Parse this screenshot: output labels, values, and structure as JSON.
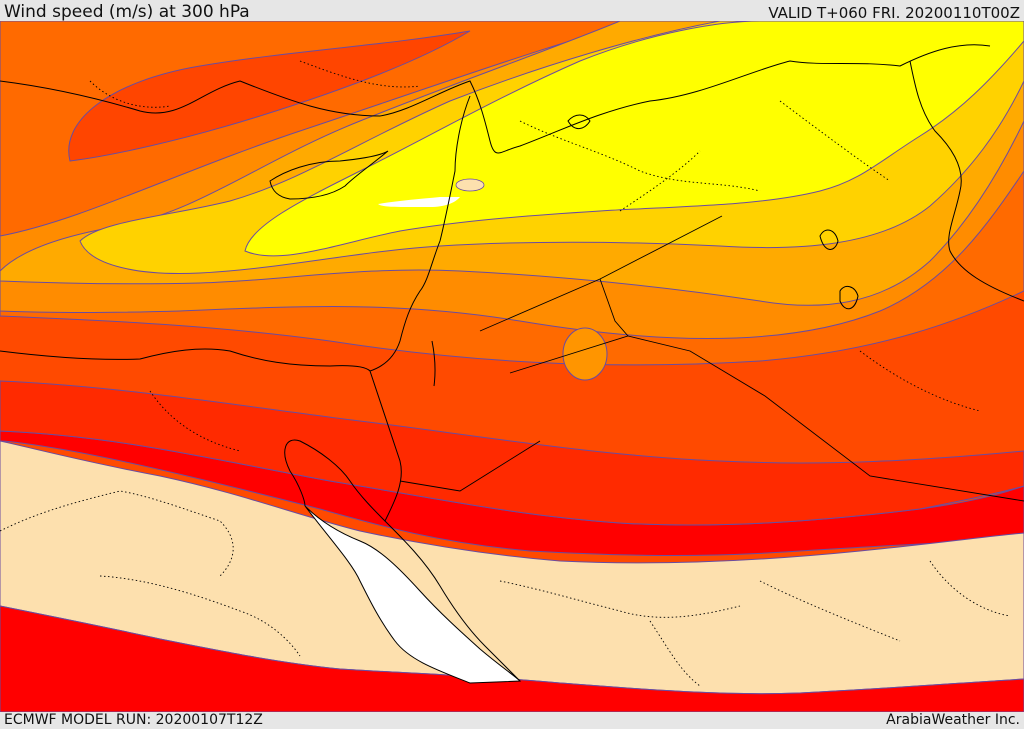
{
  "header": {
    "title": "Wind speed (m/s) at 300 hPa",
    "valid_time": "VALID T+060 FRI. 20200110T00Z"
  },
  "footer": {
    "model_run": "ECMWF MODEL RUN: 20200107T12Z",
    "credit": "ArabiaWeather Inc."
  },
  "map": {
    "field": "wind-speed-300hPa",
    "palette": {
      "calm": "#fde0ae",
      "band_red": "#ff0000",
      "band_red_orange": "#ff2a00",
      "band_orange_red": "#ff4500",
      "band_dark_orange": "#ff6a00",
      "band_orange": "#ff8c00",
      "band_amber": "#ffaa00",
      "band_gold": "#ffd200",
      "band_yellow": "#ffff00",
      "sea_mask": "#ffffff",
      "contour_line": "#6a4ca0",
      "coastline": "#000000"
    }
  }
}
